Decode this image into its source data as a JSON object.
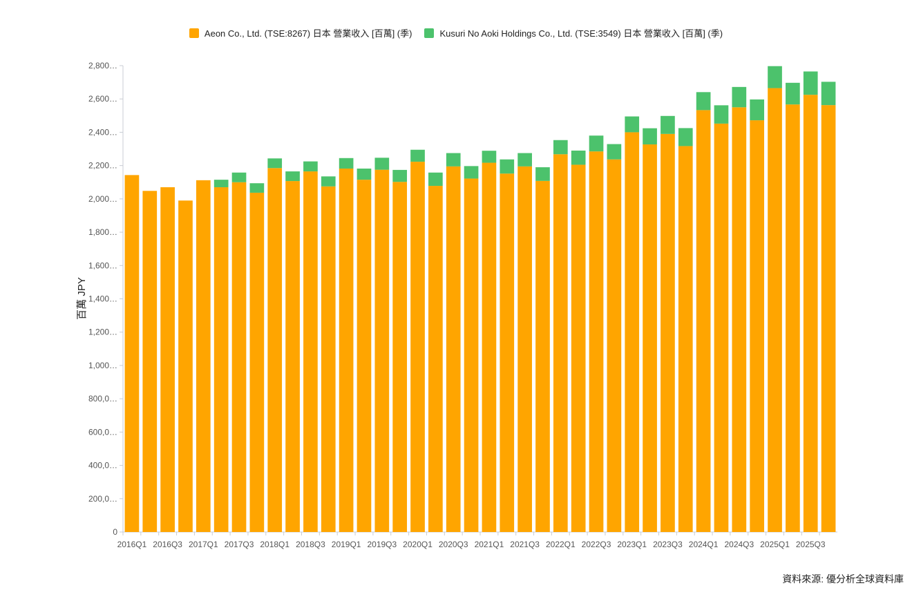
{
  "chart_data": {
    "type": "bar",
    "stacked": true,
    "ylabel": "百萬 JPY",
    "ylim": [
      0,
      2800
    ],
    "yticks": [
      "0",
      "200,0…",
      "400,0…",
      "600,0…",
      "800,0…",
      "1,000…",
      "1,200…",
      "1,400…",
      "1,600…",
      "1,800…",
      "2,000…",
      "2,200…",
      "2,400…",
      "2,600…",
      "2,800…"
    ],
    "categories": [
      "2016Q1",
      "2016Q2",
      "2016Q3",
      "2016Q4",
      "2017Q1",
      "2017Q2",
      "2017Q3",
      "2017Q4",
      "2018Q1",
      "2018Q2",
      "2018Q3",
      "2018Q4",
      "2019Q1",
      "2019Q2",
      "2019Q3",
      "2019Q4",
      "2020Q1",
      "2020Q2",
      "2020Q3",
      "2020Q4",
      "2021Q1",
      "2021Q2",
      "2021Q3",
      "2021Q4",
      "2022Q1",
      "2022Q2",
      "2022Q3",
      "2022Q4",
      "2023Q1",
      "2023Q2",
      "2023Q3",
      "2023Q4",
      "2024Q1",
      "2024Q2",
      "2024Q3",
      "2024Q4",
      "2025Q1",
      "2025Q2",
      "2025Q3",
      "2025Q4"
    ],
    "xtick_labels": [
      "2016Q1",
      "2016Q3",
      "2017Q1",
      "2017Q3",
      "2018Q1",
      "2018Q3",
      "2019Q1",
      "2019Q3",
      "2020Q1",
      "2020Q3",
      "2021Q1",
      "2021Q3",
      "2022Q1",
      "2022Q3",
      "2023Q1",
      "2023Q3",
      "2024Q1",
      "2024Q3",
      "2025Q1",
      "2025Q3"
    ],
    "series": [
      {
        "name": "Aeon Co., Ltd. (TSE:8267) 日本 營業收入 [百萬] (季)",
        "color": "#FFA500",
        "values": [
          2143,
          2048,
          2070,
          1990,
          2112,
          2070,
          2100,
          2037,
          2185,
          2107,
          2165,
          2075,
          2182,
          2115,
          2175,
          2102,
          2223,
          2078,
          2195,
          2122,
          2217,
          2152,
          2195,
          2108,
          2268,
          2205,
          2285,
          2237,
          2400,
          2327,
          2390,
          2317,
          2533,
          2452,
          2550,
          2472,
          2665,
          2567,
          2625,
          2563
        ]
      },
      {
        "name": "Kusuri No Aoki Holdings Co., Ltd. (TSE:3549) 日本 營業收入 [百萬] (季)",
        "color": "#4CC26C",
        "values": [
          0,
          0,
          0,
          0,
          0,
          45,
          58,
          57,
          58,
          58,
          60,
          60,
          63,
          67,
          72,
          72,
          72,
          80,
          80,
          75,
          72,
          85,
          80,
          82,
          85,
          85,
          95,
          92,
          95,
          97,
          108,
          108,
          108,
          110,
          122,
          125,
          132,
          130,
          140,
          140
        ]
      }
    ],
    "legend_position": "top",
    "grid": false
  },
  "source_text": "資料來源: 優分析全球資料庫"
}
